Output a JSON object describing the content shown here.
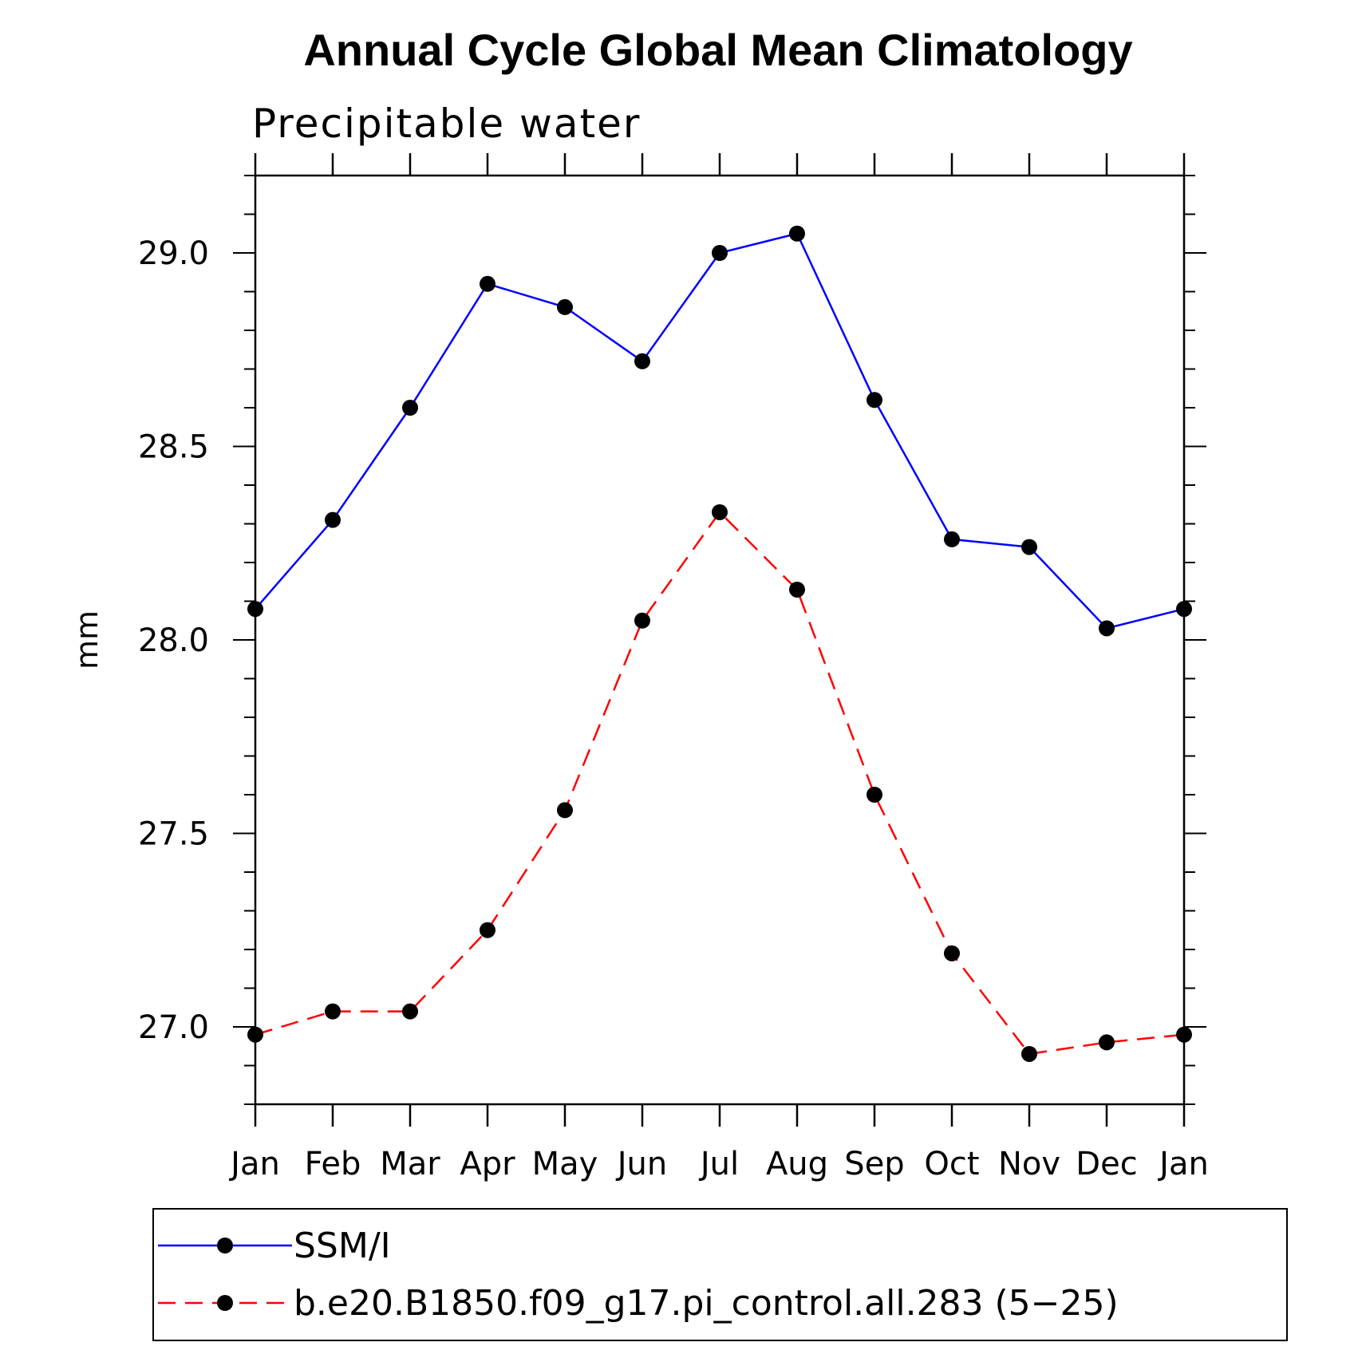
{
  "chart_data": {
    "type": "line",
    "title": "Annual Cycle Global Mean Climatology",
    "subtitle": "Precipitable water",
    "xlabel": "",
    "ylabel": "mm",
    "categories": [
      "Jan",
      "Feb",
      "Mar",
      "Apr",
      "May",
      "Jun",
      "Jul",
      "Aug",
      "Sep",
      "Oct",
      "Nov",
      "Dec",
      "Jan"
    ],
    "y_ticks": [
      "27.0",
      "27.5",
      "28.0",
      "28.5",
      "29.0"
    ],
    "ylim": [
      26.8,
      29.2
    ],
    "grid": false,
    "legend_position": "bottom",
    "series": [
      {
        "name": "SSM/I",
        "color": "#0000ff",
        "line_style": "solid",
        "marker": "filled-circle",
        "values": [
          28.08,
          28.31,
          28.6,
          28.92,
          28.86,
          28.72,
          29.0,
          29.05,
          28.62,
          28.26,
          28.24,
          28.03,
          28.08
        ]
      },
      {
        "name": "b.e20.B1850.f09_g17.pi_control.all.283 (5−25)",
        "color": "#ff0000",
        "line_style": "dashed",
        "marker": "filled-circle",
        "values": [
          26.98,
          27.04,
          27.04,
          27.25,
          27.56,
          28.05,
          28.33,
          28.13,
          27.6,
          27.19,
          26.93,
          26.96,
          26.98
        ]
      }
    ]
  }
}
